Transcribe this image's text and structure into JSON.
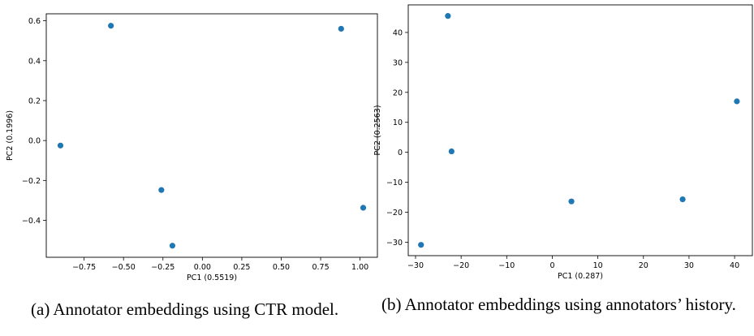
{
  "chart_data": [
    {
      "type": "scatter",
      "xlabel": "PC1 (0.5519)",
      "ylabel": "PC2 (0.1996)",
      "xlim": [
        -0.99,
        1.11
      ],
      "ylim": [
        -0.585,
        0.635
      ],
      "xticks": [
        -0.75,
        -0.5,
        -0.25,
        0.0,
        0.25,
        0.5,
        0.75,
        1.0
      ],
      "xtick_labels": [
        "−0.75",
        "−0.50",
        "−0.25",
        "0.00",
        "0.25",
        "0.50",
        "0.75",
        "1.00"
      ],
      "yticks": [
        -0.4,
        -0.2,
        0.0,
        0.2,
        0.4,
        0.6
      ],
      "ytick_labels": [
        "−0.4",
        "−0.2",
        "0.0",
        "0.2",
        "0.4",
        "0.6"
      ],
      "points": [
        {
          "x": -0.58,
          "y": 0.575
        },
        {
          "x": 0.88,
          "y": 0.56
        },
        {
          "x": -0.9,
          "y": -0.025
        },
        {
          "x": -0.26,
          "y": -0.248
        },
        {
          "x": 1.02,
          "y": -0.337
        },
        {
          "x": -0.19,
          "y": -0.527
        }
      ],
      "marker_color": "#1f77b4",
      "grid": false
    },
    {
      "type": "scatter",
      "xlabel": "PC1 (0.287)",
      "ylabel": "PC2 (0.2563)",
      "xlim": [
        -31.6,
        43.9
      ],
      "ylim": [
        -34.5,
        49.2
      ],
      "xticks": [
        -30,
        -20,
        -10,
        0,
        10,
        20,
        30,
        40
      ],
      "xtick_labels": [
        "−30",
        "−20",
        "−10",
        "0",
        "10",
        "20",
        "30",
        "40"
      ],
      "yticks": [
        -30,
        -20,
        -10,
        0,
        10,
        20,
        30,
        40
      ],
      "ytick_labels": [
        "−30",
        "−20",
        "−10",
        "0",
        "10",
        "20",
        "30",
        "40"
      ],
      "points": [
        {
          "x": -22.9,
          "y": 45.5
        },
        {
          "x": 40.5,
          "y": 17.0
        },
        {
          "x": -22.1,
          "y": 0.3
        },
        {
          "x": 4.2,
          "y": -16.4
        },
        {
          "x": 28.6,
          "y": -15.7
        },
        {
          "x": -28.8,
          "y": -30.9
        }
      ],
      "marker_color": "#1f77b4",
      "grid": false
    }
  ],
  "captions": {
    "a": "(a) Annotator embeddings using CTR model.",
    "b": "(b) Annotator embeddings using annotators’ history."
  }
}
